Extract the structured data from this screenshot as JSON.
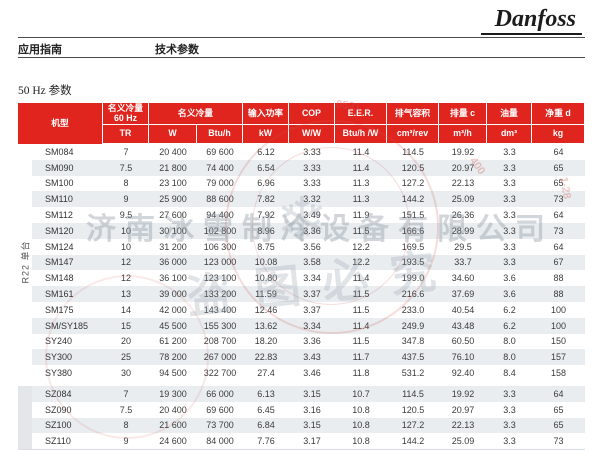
{
  "page": {
    "brand": "Danfoss",
    "nav_left": "应用指南",
    "nav_right": "技术参数",
    "section_title": "50 Hz 参数"
  },
  "colors": {
    "accent": "#E0251F",
    "stripe": "#E9EDF0",
    "side_bar": "#E3E7EA",
    "rule": "#4A4A4A"
  },
  "table": {
    "header": {
      "groups": [
        "机型",
        "名义冷量\n60 Hz",
        "名义冷量",
        "输入功率",
        "COP",
        "E.E.R.",
        "排气容积",
        "排量 c",
        "油量",
        "净重 d"
      ],
      "units": [
        "TR",
        "W",
        "Btu/h",
        "kW",
        "W/W",
        "Btu/h /W",
        "cm³/rev",
        "m³/h",
        "dm³",
        "kg"
      ]
    },
    "sections": [
      {
        "label": "R22 单台",
        "rows": [
          [
            "SM084",
            "7",
            "20 400",
            "69 600",
            "6.12",
            "3.33",
            "11.4",
            "114.5",
            "19.92",
            "3.3",
            "64"
          ],
          [
            "SM090",
            "7.5",
            "21 800",
            "74 400",
            "6.54",
            "3.33",
            "11.4",
            "120.5",
            "20.97",
            "3.3",
            "65"
          ],
          [
            "SM100",
            "8",
            "23 100",
            "79 000",
            "6.96",
            "3.33",
            "11.3",
            "127.2",
            "22.13",
            "3.3",
            "65"
          ],
          [
            "SM110",
            "9",
            "25 900",
            "88 600",
            "7.82",
            "3.32",
            "11.3",
            "144.2",
            "25.09",
            "3.3",
            "73"
          ],
          [
            "SM112",
            "9.5",
            "27 600",
            "94 400",
            "7.92",
            "3.49",
            "11.9",
            "151.5",
            "26.36",
            "3.3",
            "64"
          ],
          [
            "SM120",
            "10",
            "30 100",
            "102 800",
            "8.96",
            "3.36",
            "11.5",
            "166.6",
            "28.99",
            "3.3",
            "73"
          ],
          [
            "SM124",
            "10",
            "31 200",
            "106 300",
            "8.75",
            "3.56",
            "12.2",
            "169.5",
            "29.5",
            "3.3",
            "64"
          ],
          [
            "SM147",
            "12",
            "36 000",
            "123 000",
            "10.08",
            "3.58",
            "12.2",
            "193.5",
            "33.7",
            "3.3",
            "67"
          ],
          [
            "SM148",
            "12",
            "36 100",
            "123 100",
            "10.80",
            "3.34",
            "11.4",
            "199.0",
            "34.60",
            "3.6",
            "88"
          ],
          [
            "SM161",
            "13",
            "39 000",
            "133 200",
            "11.59",
            "3.37",
            "11.5",
            "216.6",
            "37.69",
            "3.6",
            "88"
          ],
          [
            "SM175",
            "14",
            "42 000",
            "143 400",
            "12.46",
            "3.37",
            "11.5",
            "233.0",
            "40.54",
            "6.2",
            "100"
          ],
          [
            "SM/SY185",
            "15",
            "45 500",
            "155 300",
            "13.62",
            "3.34",
            "11.4",
            "249.9",
            "43.48",
            "6.2",
            "100"
          ],
          [
            "SY240",
            "20",
            "61 200",
            "208 700",
            "18.20",
            "3.36",
            "11.5",
            "347.8",
            "60.50",
            "8.0",
            "150"
          ],
          [
            "SY300",
            "25",
            "78 200",
            "267 000",
            "22.83",
            "3.43",
            "11.7",
            "437.5",
            "76.10",
            "8.0",
            "157"
          ],
          [
            "SY380",
            "30",
            "94 500",
            "322 700",
            "27.4",
            "3.46",
            "11.8",
            "531.2",
            "92.40",
            "8.4",
            "158"
          ]
        ]
      },
      {
        "label": "",
        "rows": [
          [
            "SZ084",
            "7",
            "19 300",
            "66 000",
            "6.13",
            "3.15",
            "10.7",
            "114.5",
            "19.92",
            "3.3",
            "64"
          ],
          [
            "SZ090",
            "7.5",
            "20 400",
            "69 600",
            "6.45",
            "3.16",
            "10.8",
            "120.5",
            "20.97",
            "3.3",
            "65"
          ],
          [
            "SZ100",
            "8",
            "21 600",
            "73 700",
            "6.84",
            "3.15",
            "10.8",
            "127.2",
            "22.13",
            "3.3",
            "65"
          ],
          [
            "SZ110",
            "9",
            "24 600",
            "84 000",
            "7.76",
            "3.17",
            "10.8",
            "144.2",
            "25.09",
            "3.3",
            "73"
          ]
        ]
      }
    ]
  },
  "watermark": {
    "company": "济南冰雪制冷设备有限公司",
    "warning": "盗图必究",
    "snowflake_icon": "❄",
    "ring_digits": [
      "0531",
      "400",
      "1-28"
    ]
  }
}
